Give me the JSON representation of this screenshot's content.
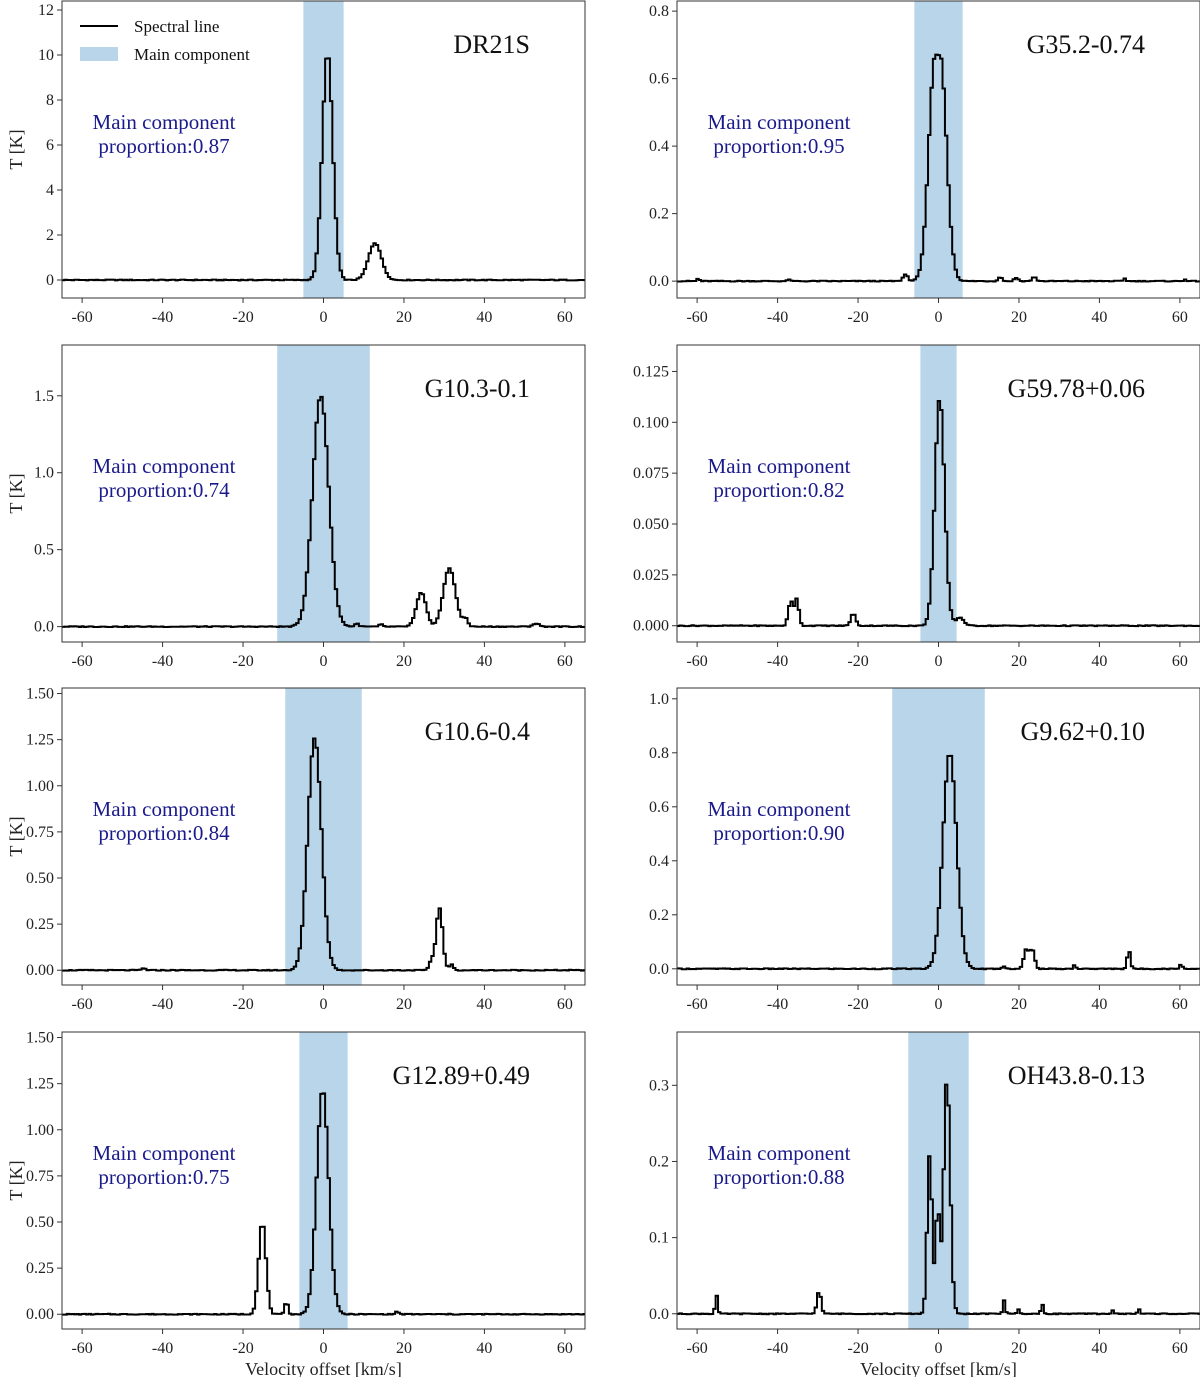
{
  "chart_data": {
    "type": "line",
    "xlabel": "Velocity offset [km/s]",
    "ylabel": "T [K]",
    "xlim": [
      -65,
      65
    ],
    "xticks": [
      -60,
      -40,
      -20,
      0,
      20,
      40,
      60
    ],
    "legend": {
      "placement": "top-left",
      "line_label": "Spectral line",
      "band_label": "Main component"
    },
    "colors": {
      "line": "#000000",
      "band": "#b8d5e9",
      "prop_text": "#1a1a8c"
    },
    "proportion_prefix": "proportion:",
    "panels": [
      {
        "source": "DR21S",
        "proportion": "0.87",
        "prop_line1": "Main component",
        "ylim": [
          -0.8,
          12.4
        ],
        "yticks": [
          0,
          2,
          4,
          6,
          8,
          10,
          12
        ],
        "ytick_labels": [
          "0",
          "2",
          "4",
          "6",
          "8",
          "10",
          "12"
        ],
        "band": [
          -5,
          5
        ],
        "features": [
          {
            "center": 0.7,
            "amp": 10.1,
            "sigma": 1.3
          },
          {
            "center": 12.5,
            "amp": 1.65,
            "sigma": 1.6
          }
        ]
      },
      {
        "source": "G35.2-0.74",
        "proportion": "0.95",
        "prop_line1": "Main component",
        "ylim": [
          -0.05,
          0.83
        ],
        "yticks": [
          0.0,
          0.2,
          0.4,
          0.6,
          0.8
        ],
        "ytick_labels": [
          "0.0",
          "0.2",
          "0.4",
          "0.6",
          "0.8"
        ],
        "band": [
          -6,
          6
        ],
        "features": [
          {
            "center": -0.5,
            "amp": 0.67,
            "sigma": 1.6,
            "flat": 1.2
          },
          {
            "center": -8.5,
            "amp": 0.02,
            "sigma": 0.6
          },
          {
            "center": 15,
            "amp": 0.012,
            "sigma": 0.5
          },
          {
            "center": 19,
            "amp": 0.01,
            "sigma": 0.5
          },
          {
            "center": 23.5,
            "amp": 0.012,
            "sigma": 0.5
          },
          {
            "center": -60,
            "amp": 0.008,
            "sigma": 0.3
          },
          {
            "center": -37.5,
            "amp": 0.006,
            "sigma": 0.3
          },
          {
            "center": 46,
            "amp": 0.008,
            "sigma": 0.3
          },
          {
            "center": 61,
            "amp": 0.006,
            "sigma": 0.3
          }
        ]
      },
      {
        "source": "G10.3-0.1",
        "proportion": "0.74",
        "prop_line1": "Main component",
        "ylim": [
          -0.1,
          1.83
        ],
        "yticks": [
          0.0,
          0.5,
          1.0,
          1.5
        ],
        "ytick_labels": [
          "0.0",
          "0.5",
          "1.0",
          "1.5"
        ],
        "band": [
          -11.5,
          11.5
        ],
        "features": [
          {
            "center": -1,
            "amp": 1.5,
            "sigma": 2.0
          },
          {
            "center": 24,
            "amp": 0.22,
            "sigma": 1.2
          },
          {
            "center": 31,
            "amp": 0.38,
            "sigma": 1.5
          },
          {
            "center": 35,
            "amp": 0.05,
            "sigma": 0.6
          },
          {
            "center": 52.5,
            "amp": 0.02,
            "sigma": 0.8
          },
          {
            "center": 8,
            "amp": 0.02,
            "sigma": 0.5
          },
          {
            "center": 14,
            "amp": 0.015,
            "sigma": 0.4
          }
        ]
      },
      {
        "source": "G59.78+0.06",
        "proportion": "0.82",
        "prop_line1": "Main component",
        "ylim": [
          -0.008,
          0.138
        ],
        "yticks": [
          0.0,
          0.025,
          0.05,
          0.075,
          0.1,
          0.125
        ],
        "ytick_labels": [
          "0.000",
          "0.025",
          "0.050",
          "0.075",
          "0.100",
          "0.125"
        ],
        "band": [
          -4.5,
          4.5
        ],
        "features": [
          {
            "center": 0,
            "amp": 0.112,
            "sigma": 1.2
          },
          {
            "center": -37,
            "amp": 0.012,
            "sigma": 0.6
          },
          {
            "center": -35.5,
            "amp": 0.013,
            "sigma": 0.5
          },
          {
            "center": -21.5,
            "amp": 0.006,
            "sigma": 0.6
          },
          {
            "center": 5,
            "amp": 0.004,
            "sigma": 1.0
          }
        ]
      },
      {
        "source": "G10.6-0.4",
        "proportion": "0.84",
        "prop_line1": "Main component",
        "ylim": [
          -0.08,
          1.53
        ],
        "yticks": [
          0.0,
          0.25,
          0.5,
          0.75,
          1.0,
          1.25,
          1.5
        ],
        "ytick_labels": [
          "0.00",
          "0.25",
          "0.50",
          "0.75",
          "1.00",
          "1.25",
          "1.50"
        ],
        "band": [
          -9.5,
          9.5
        ],
        "features": [
          {
            "center": -2.5,
            "amp": 1.26,
            "sigma": 1.7
          },
          {
            "center": 28.5,
            "amp": 0.34,
            "sigma": 0.8
          },
          {
            "center": 26.5,
            "amp": 0.05,
            "sigma": 0.5
          },
          {
            "center": 31.5,
            "amp": 0.03,
            "sigma": 0.5
          },
          {
            "center": -45,
            "amp": 0.01,
            "sigma": 0.5
          }
        ]
      },
      {
        "source": "G9.62+0.10",
        "proportion": "0.90",
        "prop_line1": "Main component",
        "ylim": [
          -0.06,
          1.04
        ],
        "yticks": [
          0.0,
          0.2,
          0.4,
          0.6,
          0.8,
          1.0
        ],
        "ytick_labels": [
          "0.0",
          "0.2",
          "0.4",
          "0.6",
          "0.8",
          "1.0"
        ],
        "band": [
          -11.5,
          11.5
        ],
        "features": [
          {
            "center": 2.5,
            "amp": 0.8,
            "sigma": 1.7
          },
          {
            "center": 21.5,
            "amp": 0.07,
            "sigma": 0.6
          },
          {
            "center": 23,
            "amp": 0.07,
            "sigma": 0.6
          },
          {
            "center": 47,
            "amp": 0.07,
            "sigma": 0.4
          },
          {
            "center": 60,
            "amp": 0.02,
            "sigma": 0.3
          },
          {
            "center": 33.5,
            "amp": 0.015,
            "sigma": 0.3
          },
          {
            "center": 16,
            "amp": 0.01,
            "sigma": 0.4
          }
        ]
      },
      {
        "source": "G12.89+0.49",
        "proportion": "0.75",
        "prop_line1": "Main component",
        "ylim": [
          -0.08,
          1.53
        ],
        "yticks": [
          0.0,
          0.25,
          0.5,
          0.75,
          1.0,
          1.25,
          1.5
        ],
        "ytick_labels": [
          "0.00",
          "0.25",
          "0.50",
          "0.75",
          "1.00",
          "1.25",
          "1.50"
        ],
        "band": [
          -6,
          6
        ],
        "features": [
          {
            "center": -0.5,
            "amp": 1.22,
            "sigma": 1.5
          },
          {
            "center": -15.5,
            "amp": 0.5,
            "sigma": 0.9
          },
          {
            "center": -9.5,
            "amp": 0.07,
            "sigma": 0.4
          },
          {
            "center": 18,
            "amp": 0.015,
            "sigma": 0.4
          }
        ]
      },
      {
        "source": "OH43.8-0.13",
        "proportion": "0.88",
        "prop_line1": "Main component",
        "ylim": [
          -0.02,
          0.37
        ],
        "yticks": [
          0.0,
          0.1,
          0.2,
          0.3
        ],
        "ytick_labels": [
          "0.0",
          "0.1",
          "0.2",
          "0.3"
        ],
        "band": [
          -7.5,
          7.5
        ],
        "features": [
          {
            "center": -2.5,
            "amp": 0.21,
            "sigma": 0.6
          },
          {
            "center": -0.5,
            "amp": 0.14,
            "sigma": 0.5
          },
          {
            "center": 1.8,
            "amp": 0.31,
            "sigma": 0.8
          },
          {
            "center": -55.5,
            "amp": 0.025,
            "sigma": 0.3
          },
          {
            "center": -30,
            "amp": 0.03,
            "sigma": 0.5
          },
          {
            "center": 16,
            "amp": 0.018,
            "sigma": 0.3
          },
          {
            "center": 19.5,
            "amp": 0.006,
            "sigma": 0.3
          },
          {
            "center": 25.5,
            "amp": 0.012,
            "sigma": 0.3
          },
          {
            "center": 43,
            "amp": 0.004,
            "sigma": 0.3
          },
          {
            "center": 49.5,
            "amp": 0.006,
            "sigma": 0.3
          }
        ]
      }
    ]
  }
}
